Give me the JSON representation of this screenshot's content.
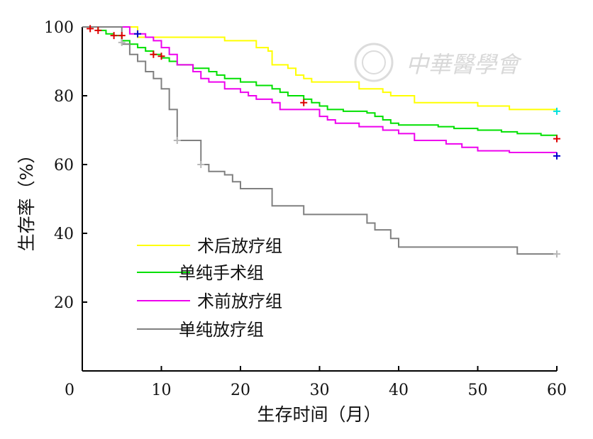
{
  "chart_data": {
    "type": "line",
    "step": true,
    "xlabel": "生存时间（月）",
    "ylabel": "生存率（%）",
    "xlim": [
      0,
      60
    ],
    "ylim": [
      0,
      100
    ],
    "xticks": [
      0,
      10,
      20,
      30,
      40,
      50,
      60
    ],
    "yticks": [
      20,
      40,
      60,
      80,
      100
    ],
    "grid": false,
    "legend_position": "bottom-left",
    "watermark": "中華醫學會",
    "series": [
      {
        "name": "术后放疗组",
        "color": "#ffff00",
        "censor_color": "#00e0e0",
        "points": [
          [
            0,
            100
          ],
          [
            7,
            97
          ],
          [
            18,
            96
          ],
          [
            22,
            94
          ],
          [
            23.5,
            93
          ],
          [
            24,
            89
          ],
          [
            26,
            88
          ],
          [
            27,
            86
          ],
          [
            28,
            85
          ],
          [
            29,
            84
          ],
          [
            30,
            84
          ],
          [
            35,
            82
          ],
          [
            38,
            81
          ],
          [
            39,
            80
          ],
          [
            42,
            78
          ],
          [
            50,
            77
          ],
          [
            54,
            76
          ],
          [
            60,
            75.5
          ]
        ],
        "censored": [
          [
            60,
            75.5
          ]
        ]
      },
      {
        "name": "单纯手术组",
        "color": "#00e000",
        "censor_color": "#dd0000",
        "points": [
          [
            0,
            100
          ],
          [
            2,
            99
          ],
          [
            3,
            98
          ],
          [
            4,
            97.5
          ],
          [
            5,
            96
          ],
          [
            6,
            95
          ],
          [
            7,
            94
          ],
          [
            8,
            93
          ],
          [
            9,
            92
          ],
          [
            10,
            91
          ],
          [
            11,
            90
          ],
          [
            12,
            89
          ],
          [
            14,
            88
          ],
          [
            16,
            87
          ],
          [
            17,
            86
          ],
          [
            18,
            85
          ],
          [
            20,
            84
          ],
          [
            22,
            83
          ],
          [
            24,
            82
          ],
          [
            25,
            81
          ],
          [
            26,
            80
          ],
          [
            28,
            79
          ],
          [
            29,
            78
          ],
          [
            30,
            77
          ],
          [
            31,
            76
          ],
          [
            33,
            75.5
          ],
          [
            36,
            75
          ],
          [
            37,
            74
          ],
          [
            38,
            73
          ],
          [
            39,
            72
          ],
          [
            40,
            71.5
          ],
          [
            45,
            71
          ],
          [
            47,
            70.5
          ],
          [
            50,
            70
          ],
          [
            53,
            69.5
          ],
          [
            55,
            69
          ],
          [
            58,
            68.5
          ],
          [
            60,
            68
          ]
        ],
        "censored": [
          [
            1,
            99.5
          ],
          [
            2,
            99
          ],
          [
            4,
            97.5
          ],
          [
            5,
            97.5
          ],
          [
            9,
            92
          ],
          [
            10,
            91.5
          ],
          [
            28,
            78
          ],
          [
            60,
            67.5
          ]
        ]
      },
      {
        "name": "术前放疗组",
        "color": "#ee00ee",
        "censor_color": "#0000cc",
        "points": [
          [
            0,
            100
          ],
          [
            6,
            98
          ],
          [
            8,
            97
          ],
          [
            9,
            96
          ],
          [
            10,
            94
          ],
          [
            11,
            92
          ],
          [
            12,
            89
          ],
          [
            14,
            87
          ],
          [
            15,
            85
          ],
          [
            16,
            84
          ],
          [
            18,
            82
          ],
          [
            20,
            81
          ],
          [
            21,
            80
          ],
          [
            22,
            79
          ],
          [
            24,
            78
          ],
          [
            25,
            76
          ],
          [
            28,
            76
          ],
          [
            30,
            74
          ],
          [
            31,
            73
          ],
          [
            32,
            72
          ],
          [
            35,
            71
          ],
          [
            38,
            70
          ],
          [
            40,
            69
          ],
          [
            42,
            67
          ],
          [
            46,
            66
          ],
          [
            48,
            65
          ],
          [
            50,
            64
          ],
          [
            54,
            63.5
          ],
          [
            60,
            63.5
          ]
        ],
        "censored": [
          [
            7,
            98
          ],
          [
            60,
            62.5
          ]
        ]
      },
      {
        "name": "单纯放疗组",
        "color": "#808080",
        "censor_color": "#b8b8b8",
        "points": [
          [
            0,
            100
          ],
          [
            5,
            95
          ],
          [
            6,
            92
          ],
          [
            7,
            90
          ],
          [
            8,
            87
          ],
          [
            9,
            85
          ],
          [
            10,
            82
          ],
          [
            11,
            76
          ],
          [
            12,
            67
          ],
          [
            15,
            60
          ],
          [
            16,
            58
          ],
          [
            18,
            57
          ],
          [
            19,
            55
          ],
          [
            20,
            53
          ],
          [
            24,
            48
          ],
          [
            28,
            45.5
          ],
          [
            36,
            43
          ],
          [
            37,
            41
          ],
          [
            39,
            38.5
          ],
          [
            40,
            36
          ],
          [
            55,
            34
          ],
          [
            60,
            34
          ]
        ],
        "censored": [
          [
            5,
            95.5
          ],
          [
            12,
            67
          ],
          [
            15,
            60
          ],
          [
            60,
            34
          ]
        ]
      }
    ]
  }
}
